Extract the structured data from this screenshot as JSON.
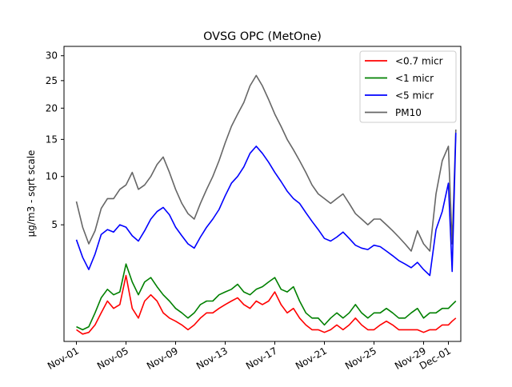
{
  "chart_data": {
    "type": "line",
    "title": "OVSG OPC (MetOne)",
    "xlabel": "",
    "ylabel": "µg/m3 - sqrt scale",
    "y_scale": "sqrt",
    "ylim": [
      0,
      32
    ],
    "yticks": [
      5,
      10,
      15,
      20,
      25,
      30
    ],
    "xlim": [
      "2024-10-31",
      "2024-12-02"
    ],
    "xticks": [
      "Nov-01",
      "Nov-05",
      "Nov-09",
      "Nov-13",
      "Nov-17",
      "Nov-21",
      "Nov-25",
      "Nov-29",
      "Dec-01"
    ],
    "xtick_day_offsets": [
      0,
      4,
      8,
      12,
      16,
      20,
      24,
      28,
      30
    ],
    "grid": false,
    "legend_position": "top-right",
    "x_unit": "days from Nov-01",
    "x": [
      0.0,
      0.5,
      1.0,
      1.5,
      2.0,
      2.5,
      3.0,
      3.5,
      4.0,
      4.5,
      5.0,
      5.5,
      6.0,
      6.5,
      7.0,
      7.5,
      8.0,
      8.5,
      9.0,
      9.5,
      10.0,
      10.5,
      11.0,
      11.5,
      12.0,
      12.5,
      13.0,
      13.5,
      14.0,
      14.5,
      15.0,
      15.5,
      16.0,
      16.5,
      17.0,
      17.5,
      18.0,
      18.5,
      19.0,
      19.5,
      20.0,
      20.5,
      21.0,
      21.5,
      22.0,
      22.5,
      23.0,
      23.5,
      24.0,
      24.5,
      25.0,
      25.5,
      26.0,
      26.5,
      27.0,
      27.5,
      28.0,
      28.5,
      29.0,
      29.5,
      30.0,
      30.3,
      30.6
    ],
    "series": [
      {
        "name": "<0.7 micr",
        "color": "#ff0000",
        "values": [
          0.05,
          0.02,
          0.03,
          0.1,
          0.3,
          0.6,
          0.4,
          0.5,
          1.6,
          0.4,
          0.2,
          0.6,
          0.8,
          0.6,
          0.3,
          0.2,
          0.15,
          0.1,
          0.05,
          0.1,
          0.2,
          0.3,
          0.3,
          0.4,
          0.5,
          0.6,
          0.7,
          0.5,
          0.4,
          0.6,
          0.5,
          0.6,
          0.9,
          0.5,
          0.3,
          0.4,
          0.2,
          0.1,
          0.05,
          0.05,
          0.03,
          0.05,
          0.1,
          0.05,
          0.1,
          0.2,
          0.1,
          0.05,
          0.05,
          0.1,
          0.15,
          0.1,
          0.05,
          0.05,
          0.05,
          0.05,
          0.03,
          0.05,
          0.05,
          0.1,
          0.1,
          0.15,
          0.2
        ]
      },
      {
        "name": "<1 micr",
        "color": "#008000",
        "values": [
          0.08,
          0.05,
          0.08,
          0.3,
          0.7,
          1.0,
          0.8,
          0.9,
          2.2,
          1.3,
          0.8,
          1.3,
          1.5,
          1.1,
          0.8,
          0.6,
          0.4,
          0.3,
          0.2,
          0.3,
          0.5,
          0.6,
          0.6,
          0.8,
          0.9,
          1.0,
          1.2,
          0.9,
          0.8,
          1.0,
          1.1,
          1.3,
          1.5,
          1.0,
          0.9,
          1.1,
          0.6,
          0.3,
          0.2,
          0.2,
          0.1,
          0.2,
          0.3,
          0.2,
          0.3,
          0.5,
          0.3,
          0.2,
          0.3,
          0.3,
          0.4,
          0.3,
          0.2,
          0.2,
          0.3,
          0.4,
          0.2,
          0.3,
          0.3,
          0.4,
          0.4,
          0.5,
          0.6
        ]
      },
      {
        "name": "<5 micr",
        "color": "#0000ff",
        "values": [
          3.8,
          2.6,
          1.9,
          2.8,
          4.2,
          4.6,
          4.4,
          5.0,
          4.8,
          4.1,
          3.7,
          4.5,
          5.5,
          6.2,
          6.6,
          5.9,
          4.8,
          4.1,
          3.5,
          3.2,
          4.0,
          4.8,
          5.5,
          6.4,
          7.8,
          9.2,
          10.0,
          11.2,
          13.0,
          14.0,
          13.0,
          11.8,
          10.5,
          9.4,
          8.3,
          7.5,
          7.0,
          6.1,
          5.3,
          4.6,
          3.9,
          3.7,
          4.0,
          4.4,
          3.9,
          3.4,
          3.2,
          3.1,
          3.4,
          3.3,
          3.0,
          2.7,
          2.4,
          2.2,
          2.0,
          2.3,
          1.9,
          1.6,
          4.6,
          6.2,
          9.2,
          1.8,
          16.0
        ]
      },
      {
        "name": "PM10",
        "color": "#666666",
        "values": [
          7.2,
          4.8,
          3.5,
          4.5,
          6.5,
          7.5,
          7.5,
          8.5,
          9.0,
          10.5,
          8.5,
          9.0,
          10.0,
          11.5,
          12.5,
          10.5,
          8.5,
          7.0,
          6.0,
          5.5,
          7.0,
          8.5,
          10.0,
          12.0,
          14.5,
          17.0,
          19.0,
          21.0,
          24.0,
          26.0,
          24.0,
          21.5,
          19.0,
          17.0,
          15.0,
          13.5,
          12.0,
          10.5,
          9.0,
          8.0,
          7.5,
          7.0,
          7.5,
          8.0,
          7.0,
          6.0,
          5.5,
          5.0,
          5.5,
          5.5,
          5.0,
          4.5,
          4.0,
          3.5,
          3.0,
          4.5,
          3.5,
          3.0,
          8.0,
          12.0,
          14.0,
          3.5,
          16.5
        ]
      }
    ]
  }
}
